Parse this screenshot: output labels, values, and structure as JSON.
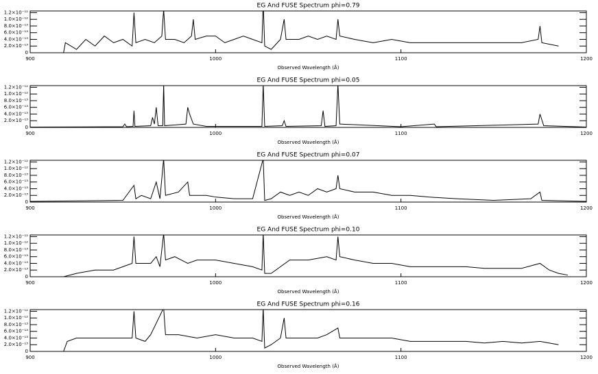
{
  "chart_data": [
    {
      "type": "line",
      "title": "EG And FUSE Spectrum phi=0.79",
      "x_label": "Observed Wavelength (Å)",
      "xlim": [
        900,
        1200
      ],
      "ylim": [
        0,
        1.25e-12
      ],
      "xticks": [
        900,
        1000,
        1100,
        1200
      ],
      "yticks": [
        0,
        {
          "value": 2e-13,
          "label": "2.0×10⁻¹³"
        },
        {
          "value": 4e-13,
          "label": "4.0×10⁻¹³"
        },
        {
          "value": 6e-13,
          "label": "6.0×10⁻¹³"
        },
        {
          "value": 8e-13,
          "label": "8.0×10⁻¹³"
        },
        {
          "value": 1e-12,
          "label": "1.0×10⁻¹²"
        },
        {
          "value": 1.2e-12,
          "label": "1.2×10⁻¹²"
        }
      ],
      "color": "#000000",
      "x": [
        918,
        919,
        925,
        930,
        935,
        940,
        945,
        950,
        955,
        956,
        957,
        962,
        967,
        971,
        972,
        973,
        978,
        983,
        987,
        988,
        989,
        995,
        1000,
        1005,
        1010,
        1015,
        1020,
        1025,
        1025.7,
        1026.5,
        1030,
        1035,
        1037,
        1038,
        1045,
        1050,
        1055,
        1060,
        1065,
        1066,
        1067,
        1075,
        1085,
        1095,
        1105,
        1115,
        1125,
        1135,
        1145,
        1155,
        1165,
        1174,
        1175,
        1176,
        1185
      ],
      "values": [
        0,
        3e-13,
        1e-13,
        4e-13,
        2e-13,
        5e-13,
        3e-13,
        4e-13,
        2e-13,
        1.2e-12,
        3e-13,
        4e-13,
        3e-13,
        5e-13,
        1.3e-12,
        4e-13,
        4e-13,
        3e-13,
        5e-13,
        1e-12,
        4e-13,
        5e-13,
        5e-13,
        3e-13,
        4e-13,
        5e-13,
        4e-13,
        3e-13,
        1.5e-12,
        2e-13,
        1e-13,
        4e-13,
        1e-12,
        4e-13,
        4e-13,
        5e-13,
        4e-13,
        5e-13,
        4e-13,
        1e-12,
        5e-13,
        4e-13,
        3e-13,
        4e-13,
        3e-13,
        3e-13,
        3e-13,
        3e-13,
        3e-13,
        3e-13,
        3e-13,
        4e-13,
        8e-13,
        3e-13,
        2e-13
      ]
    },
    {
      "type": "line",
      "title": "EG And FUSE Spectrum phi=0.05",
      "x_label": "Observed Wavelength (Å)",
      "xlim": [
        900,
        1200
      ],
      "ylim": [
        0,
        1.25e-12
      ],
      "xticks": [
        900,
        1000,
        1100,
        1200
      ],
      "yticks": [
        0,
        {
          "value": 2e-13,
          "label": "2.0×10⁻¹³"
        },
        {
          "value": 4e-13,
          "label": "4.0×10⁻¹³"
        },
        {
          "value": 6e-13,
          "label": "6.0×10⁻¹³"
        },
        {
          "value": 8e-13,
          "label": "8.0×10⁻¹³"
        },
        {
          "value": 1e-12,
          "label": "1.0×10⁻¹²"
        },
        {
          "value": 1.2e-12,
          "label": "1.2×10⁻¹²"
        }
      ],
      "color": "#000000",
      "x": [
        900,
        950,
        951,
        952,
        955.5,
        956,
        956.5,
        965,
        966,
        967,
        968,
        969,
        971.5,
        972,
        972.5,
        984,
        985,
        986,
        988,
        995,
        1025,
        1025.7,
        1026.5,
        1036,
        1037,
        1038,
        1057,
        1058,
        1059,
        1065,
        1066,
        1067,
        1100,
        1118,
        1119,
        1174,
        1175,
        1177,
        1200
      ],
      "values": [
        1e-14,
        2e-14,
        1e-13,
        2e-14,
        3e-14,
        5e-13,
        3e-14,
        5e-14,
        3e-13,
        1e-13,
        6e-13,
        5e-14,
        5e-14,
        1.3e-12,
        5e-14,
        1e-13,
        6e-13,
        4e-13,
        1e-13,
        3e-14,
        3e-14,
        1.3e-12,
        3e-14,
        5e-14,
        2e-13,
        3e-14,
        5e-14,
        5e-13,
        3e-14,
        5e-14,
        1.3e-12,
        1e-13,
        2e-14,
        1e-13,
        2e-14,
        1e-13,
        4e-13,
        5e-14,
        1e-14
      ]
    },
    {
      "type": "line",
      "title": "EG And FUSE Spectrum phi=0.07",
      "x_label": "Observed Wavelength (Å)",
      "xlim": [
        900,
        1200
      ],
      "ylim": [
        0,
        1.25e-12
      ],
      "xticks": [
        900,
        1000,
        1100,
        1200
      ],
      "yticks": [
        0,
        {
          "value": 2e-13,
          "label": "2.0×10⁻¹³"
        },
        {
          "value": 4e-13,
          "label": "4.0×10⁻¹³"
        },
        {
          "value": 6e-13,
          "label": "6.0×10⁻¹³"
        },
        {
          "value": 8e-13,
          "label": "8.0×10⁻¹³"
        },
        {
          "value": 1e-12,
          "label": "1.0×10⁻¹²"
        },
        {
          "value": 1.2e-12,
          "label": "1.2×10⁻¹²"
        }
      ],
      "color": "#000000",
      "x": [
        900,
        950,
        956,
        957,
        960,
        965,
        968,
        970,
        972,
        973,
        980,
        985,
        986,
        990,
        995,
        1000,
        1010,
        1020,
        1025.7,
        1026.5,
        1030,
        1035,
        1040,
        1045,
        1050,
        1055,
        1060,
        1065,
        1066,
        1067,
        1075,
        1085,
        1095,
        1105,
        1115,
        1130,
        1150,
        1170,
        1175,
        1176,
        1200
      ],
      "values": [
        2e-14,
        5e-14,
        5e-13,
        1e-13,
        2e-13,
        1e-13,
        6e-13,
        1e-13,
        1.3e-12,
        2e-13,
        3e-13,
        6e-13,
        2e-13,
        2e-13,
        2e-13,
        1.5e-13,
        1e-13,
        1e-13,
        1.3e-12,
        5e-14,
        1e-13,
        3e-13,
        2e-13,
        3e-13,
        2e-13,
        4e-13,
        3e-13,
        4e-13,
        8e-13,
        4e-13,
        3e-13,
        3e-13,
        2e-13,
        2e-13,
        1.5e-13,
        1e-13,
        5e-14,
        1e-13,
        3e-13,
        5e-14,
        2e-14
      ]
    },
    {
      "type": "line",
      "title": "EG And FUSE Spectrum phi=0.10",
      "x_label": "Observed Wavelength (Å)",
      "xlim": [
        900,
        1200
      ],
      "ylim": [
        0,
        1.25e-12
      ],
      "xticks": [
        900,
        1000,
        1100,
        1200
      ],
      "yticks": [
        0,
        {
          "value": 2e-13,
          "label": "2.0×10⁻¹³"
        },
        {
          "value": 4e-13,
          "label": "4.0×10⁻¹³"
        },
        {
          "value": 6e-13,
          "label": "6.0×10⁻¹³"
        },
        {
          "value": 8e-13,
          "label": "8.0×10⁻¹³"
        },
        {
          "value": 1e-12,
          "label": "1.0×10⁻¹²"
        },
        {
          "value": 1.2e-12,
          "label": "1.2×10⁻¹²"
        }
      ],
      "color": "#000000",
      "x": [
        900,
        918,
        925,
        935,
        945,
        950,
        955,
        956,
        957,
        965,
        968,
        970,
        972,
        973,
        978,
        985,
        990,
        1000,
        1010,
        1020,
        1025,
        1025.7,
        1026.5,
        1030,
        1035,
        1040,
        1050,
        1060,
        1065,
        1066,
        1067,
        1075,
        1085,
        1095,
        1105,
        1115,
        1125,
        1135,
        1145,
        1155,
        1165,
        1175,
        1180,
        1185,
        1190
      ],
      "values": [
        0,
        0,
        1e-13,
        2e-13,
        2e-13,
        3e-13,
        4e-13,
        1.2e-12,
        4e-13,
        4e-13,
        6e-13,
        3e-13,
        1.3e-12,
        5e-13,
        6e-13,
        4e-13,
        5e-13,
        5e-13,
        4e-13,
        3e-13,
        2e-13,
        1.3e-12,
        1e-13,
        1e-13,
        3e-13,
        5e-13,
        5e-13,
        6e-13,
        5e-13,
        1.2e-12,
        6e-13,
        5e-13,
        4e-13,
        4e-13,
        3e-13,
        3e-13,
        3e-13,
        3e-13,
        2.5e-13,
        2.5e-13,
        2.5e-13,
        4e-13,
        2e-13,
        1e-13,
        5e-14
      ]
    },
    {
      "type": "line",
      "title": "EG And FUSE Spectrum phi=0.16",
      "x_label": "Observed Wavelength (Å)",
      "xlim": [
        900,
        1200
      ],
      "ylim": [
        0,
        1.25e-12
      ],
      "xticks": [
        900,
        1000,
        1100,
        1200
      ],
      "yticks": [
        0,
        {
          "value": 2e-13,
          "label": "2.0×10⁻¹³"
        },
        {
          "value": 4e-13,
          "label": "4.0×10⁻¹³"
        },
        {
          "value": 6e-13,
          "label": "6.0×10⁻¹³"
        },
        {
          "value": 8e-13,
          "label": "8.0×10⁻¹³"
        },
        {
          "value": 1e-12,
          "label": "1.0×10⁻¹²"
        },
        {
          "value": 1.2e-12,
          "label": "1.2×10⁻¹²"
        }
      ],
      "color": "#000000",
      "x": [
        918,
        920,
        925,
        935,
        945,
        955,
        956,
        957,
        962,
        965,
        972,
        973,
        980,
        990,
        1000,
        1010,
        1020,
        1025,
        1025.7,
        1026.5,
        1030,
        1035,
        1037,
        1038,
        1045,
        1055,
        1060,
        1066,
        1067,
        1075,
        1085,
        1095,
        1105,
        1115,
        1125,
        1135,
        1145,
        1155,
        1165,
        1175,
        1185
      ],
      "values": [
        0,
        3e-13,
        4e-13,
        4e-13,
        4e-13,
        4e-13,
        1.2e-12,
        4e-13,
        3e-13,
        5e-13,
        1.3e-12,
        5e-13,
        5e-13,
        4e-13,
        5e-13,
        4e-13,
        4e-13,
        3e-13,
        1.3e-12,
        1e-13,
        2e-13,
        4e-13,
        1e-12,
        4e-13,
        4e-13,
        4e-13,
        5e-13,
        7e-13,
        4e-13,
        4e-13,
        4e-13,
        4e-13,
        3e-13,
        3e-13,
        3e-13,
        3e-13,
        2.5e-13,
        3e-13,
        2.5e-13,
        3e-13,
        2e-13
      ]
    }
  ]
}
